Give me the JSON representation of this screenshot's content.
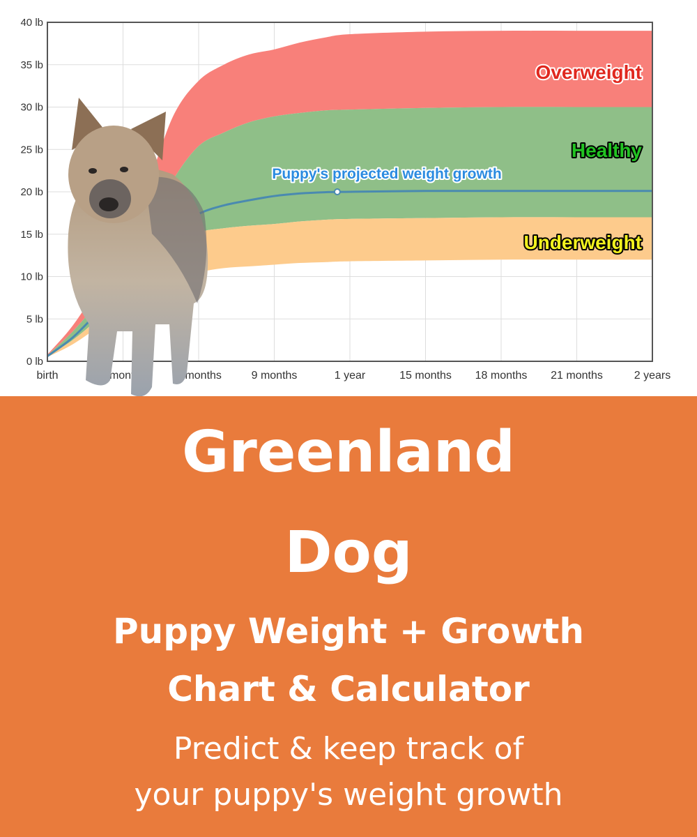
{
  "chart_data": {
    "type": "area",
    "title": "",
    "xlabel": "",
    "ylabel": "",
    "x_ticks": [
      {
        "month": 0,
        "label": "birth"
      },
      {
        "month": 3,
        "label": "3 months"
      },
      {
        "month": 6,
        "label": "6 months"
      },
      {
        "month": 9,
        "label": "9 months"
      },
      {
        "month": 12,
        "label": "1 year"
      },
      {
        "month": 15,
        "label": "15 months"
      },
      {
        "month": 18,
        "label": "18 months"
      },
      {
        "month": 21,
        "label": "21 months"
      },
      {
        "month": 24,
        "label": "2 years"
      }
    ],
    "y_ticks": [
      {
        "value": 0,
        "label": "0 lb"
      },
      {
        "value": 5,
        "label": "5 lb"
      },
      {
        "value": 10,
        "label": "10 lb"
      },
      {
        "value": 15,
        "label": "15 lb"
      },
      {
        "value": 20,
        "label": "20 lb"
      },
      {
        "value": 25,
        "label": "25 lb"
      },
      {
        "value": 30,
        "label": "30 lb"
      },
      {
        "value": 35,
        "label": "35 lb"
      },
      {
        "value": 40,
        "label": "40 lb"
      }
    ],
    "xlim": [
      0,
      24
    ],
    "ylim": [
      0,
      40
    ],
    "grid": true,
    "x_months": [
      0,
      1,
      2,
      3,
      4,
      5,
      6,
      7,
      8,
      9,
      10,
      11,
      12,
      15,
      18,
      21,
      24
    ],
    "bands": [
      {
        "name": "Overweight",
        "color": "#F8807A",
        "label_color": "#E0281F",
        "lower": [
          0.7,
          3.5,
          7,
          11,
          16,
          21.5,
          25.4,
          27,
          28.2,
          28.9,
          29.3,
          29.6,
          29.7,
          29.9,
          30,
          30,
          30
        ],
        "upper": [
          0.8,
          4.2,
          8.8,
          14.5,
          21,
          29,
          33.1,
          35,
          36.2,
          36.8,
          37.6,
          38.2,
          38.6,
          38.9,
          39,
          39,
          39
        ]
      },
      {
        "name": "Healthy",
        "color": "#8FBF88",
        "label_color": "#22C322",
        "lower": [
          0.6,
          2.5,
          5,
          8,
          11,
          13.5,
          15.2,
          15.7,
          16,
          16.2,
          16.5,
          16.7,
          16.8,
          16.9,
          17,
          17,
          17
        ],
        "upper": [
          0.7,
          3.5,
          7,
          11,
          16,
          21.5,
          25.4,
          27,
          28.2,
          28.9,
          29.3,
          29.6,
          29.7,
          29.9,
          30,
          30,
          30
        ]
      },
      {
        "name": "Underweight",
        "color": "#FDCB8C",
        "label_color": "#F2F21E",
        "lower": [
          0.5,
          2,
          4,
          6,
          8,
          9.6,
          10.5,
          11,
          11.2,
          11.4,
          11.6,
          11.7,
          11.8,
          11.9,
          12,
          12,
          12
        ],
        "upper": [
          0.6,
          2.5,
          5,
          8,
          11,
          13.5,
          15.2,
          15.7,
          16,
          16.2,
          16.5,
          16.7,
          16.8,
          16.9,
          17,
          17,
          17
        ]
      }
    ],
    "series": [
      {
        "name": "Puppy's projected weight growth",
        "color": "#4A8AB0",
        "label_color": "#2B8BE0",
        "values": [
          0.6,
          2.8,
          5.8,
          9,
          12.5,
          15.5,
          17.4,
          18.4,
          19,
          19.5,
          19.8,
          19.95,
          20,
          20.1,
          20.1,
          20.1,
          20.1
        ],
        "marker": {
          "month": 11.5,
          "value": 20
        }
      }
    ]
  },
  "banner": {
    "background": "#E97B3C",
    "title_line1": "Greenland",
    "title_line2": "Dog",
    "subtitle_line1": "Puppy Weight + Growth",
    "subtitle_line2": "Chart & Calculator",
    "desc_line1": "Predict & keep track of",
    "desc_line2": "your puppy's weight growth"
  }
}
